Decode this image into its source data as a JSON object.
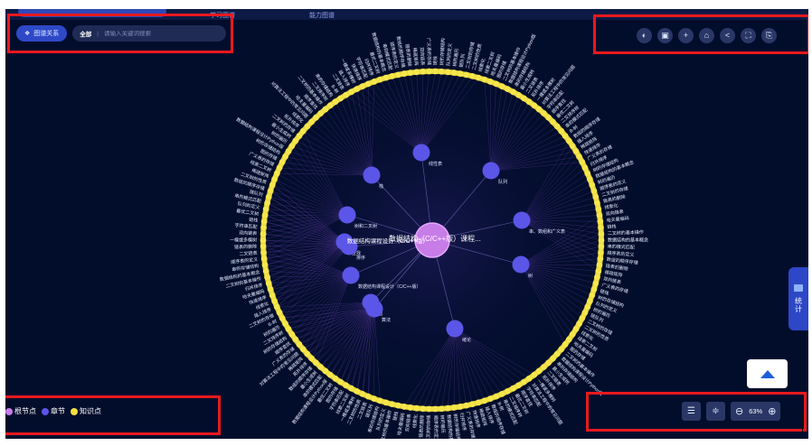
{
  "top_tabs": [
    {
      "label": "学习图谱"
    },
    {
      "label": "能力图谱"
    }
  ],
  "search": {
    "relation_button": "图谱关系",
    "scope": "全部",
    "separator": "|",
    "placeholder": "请输入关键词搜索"
  },
  "toolbar": {
    "icons": [
      "refresh-icon",
      "save-icon",
      "add-icon",
      "camera-icon",
      "share-icon",
      "fullscreen-icon",
      "export-icon"
    ]
  },
  "graph": {
    "root_label": "数据结构（C/C++版）课程...",
    "root_overlay_label": "数据结构课程设计（C/C++版）",
    "chapters": [
      {
        "label": "线性表"
      },
      {
        "label": "栈"
      },
      {
        "label": "队列"
      },
      {
        "label": "串、数组和广义表"
      },
      {
        "label": "树"
      },
      {
        "label": "树和二叉树"
      },
      {
        "label": "查找"
      },
      {
        "label": "排序"
      },
      {
        "label": "数据结构课程设计（C/C++版）"
      },
      {
        "label": "图"
      },
      {
        "label": "算法"
      },
      {
        "label": "绪论"
      }
    ],
    "knowledge_labels_left": [
      "数据结构的基本概念",
      "算法的时间复杂度",
      "顺序表的定义",
      "单链表的插入",
      "链表的删除",
      "循环链表",
      "双向链表",
      "顺序栈",
      "链栈",
      "栈的应用",
      "队列的定义",
      "循环队列",
      "链队列",
      "递归的实现",
      "二叉树的性质",
      "二叉树的遍历",
      "线索二叉树",
      "哈夫曼树",
      "图的存储",
      "深度优先遍历",
      "数据结构课程设计Python版",
      "数据结构课程设计Python版",
      "最小生成树",
      "最短路径",
      "拓扑排序",
      "科技强国的社会责任感、使命",
      "对算法工程中的常见问题",
      "关键路径",
      "顺序查找",
      "折半查找",
      "二叉排序树",
      "平衡二叉树",
      "B-树",
      "散列表",
      "插入排序",
      "希尔排序",
      "快速排序",
      "堆排序",
      "归并排序",
      "基数排序"
    ],
    "knowledge_labels_right": [
      "串的定义",
      "串的模式匹配",
      "KMP算法",
      "数组的顺序存储",
      "特殊矩阵的压缩",
      "稀疏矩阵",
      "广义表的定义",
      "广义表的存储",
      "树的定义",
      "树的存储结构",
      "森林与二叉树转换",
      "树的遍历",
      "二叉树的定义",
      "二叉树的存储",
      "遍历二叉树",
      "线索化",
      "二叉树的应用",
      "哈夫曼编码",
      "并查集",
      "二叉树的基本操作",
      "字符串的基本运算",
      "串的存储结构",
      "模式串",
      "二叉链表",
      "三叉链表",
      "一棵或多棵树",
      "树和森林",
      "字符串匹配",
      "二叉树",
      "最优二叉树"
    ]
  },
  "legend": [
    {
      "label": "根节点",
      "color": "#c77ce8"
    },
    {
      "label": "章节",
      "color": "#5b55e8"
    },
    {
      "label": "知识点",
      "color": "#f2df3f"
    }
  ],
  "controls": {
    "zoom_value": "63%",
    "zoom_out": "⊖",
    "zoom_in": "⊕"
  },
  "stats": {
    "label": "统计"
  }
}
